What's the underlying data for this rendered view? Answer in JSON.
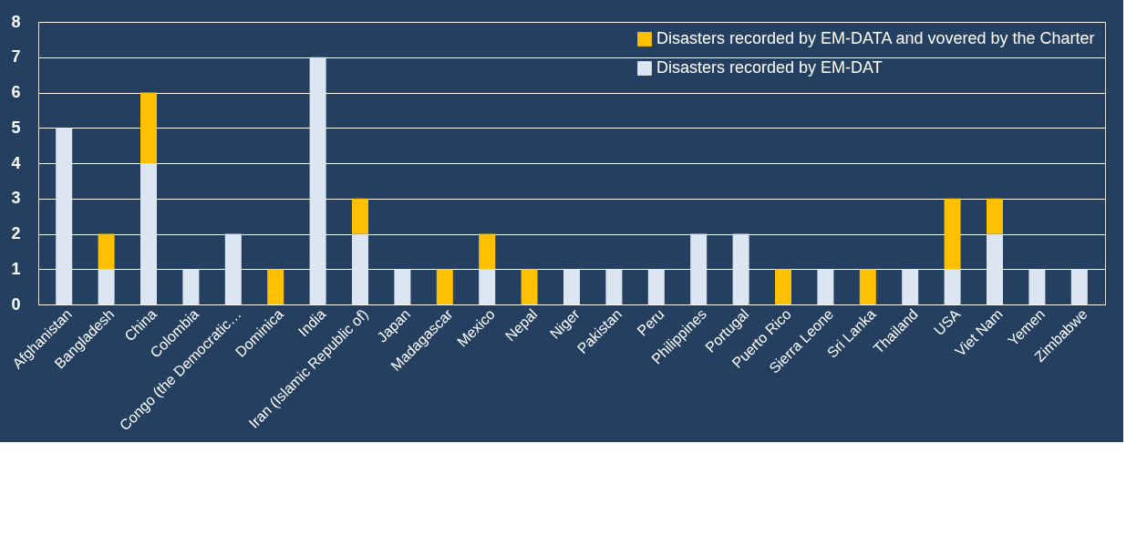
{
  "chart_data": {
    "type": "bar",
    "stacked": true,
    "categories": [
      "Afghanistan",
      "Bangladesh",
      "China",
      "Colombia",
      "Congo (the Democratic…",
      "Dominica",
      "India",
      "Iran (Islamic Republic of)",
      "Japan",
      "Madagascar",
      "Mexico",
      "Nepal",
      "Niger",
      "Pakistan",
      "Peru",
      "Philippines",
      "Portugal",
      "Puerto Rico",
      "Sierra Leone",
      "Sri Lanka",
      "Thailand",
      "USA",
      "Viet Nam",
      "Yemen",
      "Zimbabwe"
    ],
    "series": [
      {
        "name": "Disasters recorded by EM-DAT",
        "color": "#dce6f2",
        "values": [
          5,
          1,
          4,
          1,
          2,
          0,
          7,
          2,
          1,
          0,
          1,
          0,
          1,
          1,
          1,
          2,
          2,
          0,
          1,
          0,
          1,
          1,
          2,
          1,
          1
        ]
      },
      {
        "name": "Disasters recorded by EM-DATA and vovered by the Charter",
        "color": "#ffc000",
        "values": [
          0,
          1,
          2,
          0,
          0,
          1,
          0,
          1,
          0,
          1,
          1,
          1,
          0,
          0,
          0,
          0,
          0,
          1,
          0,
          1,
          0,
          2,
          1,
          0,
          0
        ]
      }
    ],
    "ylim": [
      0,
      8
    ],
    "yticks": [
      0,
      1,
      2,
      3,
      4,
      5,
      6,
      7,
      8
    ],
    "grid": "y",
    "legend": "top right"
  }
}
